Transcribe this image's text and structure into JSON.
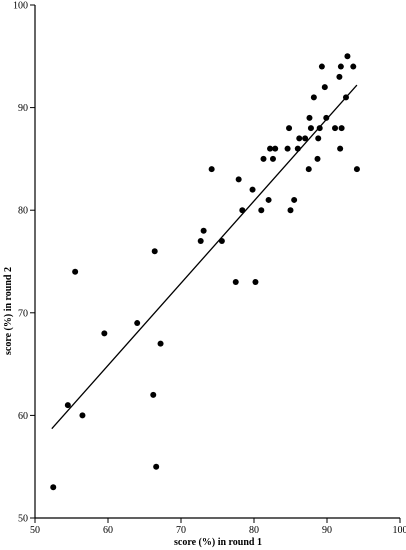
{
  "chart_data": {
    "type": "scatter",
    "title": "",
    "xlabel": "score (%) in round 1",
    "ylabel": "score (%) in round 2",
    "xlim": [
      50,
      100
    ],
    "ylim": [
      50,
      100
    ],
    "xticks": [
      50,
      60,
      70,
      80,
      90,
      100
    ],
    "yticks": [
      50,
      60,
      70,
      80,
      90,
      100
    ],
    "grid": false,
    "legend": "none",
    "colors": {
      "marker": "#000000",
      "line": "#000000",
      "axis": "#000000"
    },
    "points": [
      {
        "x": 52.5,
        "y": 53
      },
      {
        "x": 54.5,
        "y": 61
      },
      {
        "x": 55.5,
        "y": 74
      },
      {
        "x": 56.5,
        "y": 60
      },
      {
        "x": 59.5,
        "y": 68
      },
      {
        "x": 64,
        "y": 69
      },
      {
        "x": 66.2,
        "y": 62
      },
      {
        "x": 66.4,
        "y": 76
      },
      {
        "x": 66.6,
        "y": 55
      },
      {
        "x": 67.2,
        "y": 67
      },
      {
        "x": 72.7,
        "y": 77
      },
      {
        "x": 73.1,
        "y": 78
      },
      {
        "x": 74.2,
        "y": 84
      },
      {
        "x": 75.6,
        "y": 77
      },
      {
        "x": 77.5,
        "y": 73
      },
      {
        "x": 77.9,
        "y": 83
      },
      {
        "x": 78.4,
        "y": 80
      },
      {
        "x": 79.8,
        "y": 82
      },
      {
        "x": 80.2,
        "y": 73
      },
      {
        "x": 81,
        "y": 80
      },
      {
        "x": 81.3,
        "y": 85
      },
      {
        "x": 82,
        "y": 81
      },
      {
        "x": 82.2,
        "y": 86
      },
      {
        "x": 82.6,
        "y": 85
      },
      {
        "x": 82.9,
        "y": 86
      },
      {
        "x": 84.6,
        "y": 86
      },
      {
        "x": 84.8,
        "y": 88
      },
      {
        "x": 85,
        "y": 80
      },
      {
        "x": 85.5,
        "y": 81
      },
      {
        "x": 86,
        "y": 86
      },
      {
        "x": 86.2,
        "y": 87
      },
      {
        "x": 87,
        "y": 87
      },
      {
        "x": 87.5,
        "y": 84
      },
      {
        "x": 87.6,
        "y": 89
      },
      {
        "x": 87.8,
        "y": 88
      },
      {
        "x": 88.2,
        "y": 91
      },
      {
        "x": 88.7,
        "y": 85
      },
      {
        "x": 88.8,
        "y": 87
      },
      {
        "x": 89,
        "y": 88
      },
      {
        "x": 89.3,
        "y": 94
      },
      {
        "x": 89.7,
        "y": 92
      },
      {
        "x": 89.9,
        "y": 89
      },
      {
        "x": 91.1,
        "y": 88
      },
      {
        "x": 91.7,
        "y": 93
      },
      {
        "x": 91.8,
        "y": 86
      },
      {
        "x": 91.9,
        "y": 94
      },
      {
        "x": 92,
        "y": 88
      },
      {
        "x": 92.6,
        "y": 91
      },
      {
        "x": 92.8,
        "y": 95
      },
      {
        "x": 93.6,
        "y": 94
      },
      {
        "x": 94.1,
        "y": 84
      }
    ],
    "regression_line": {
      "x": [
        52.3,
        94.1
      ],
      "y": [
        58.7,
        92.2
      ]
    }
  }
}
